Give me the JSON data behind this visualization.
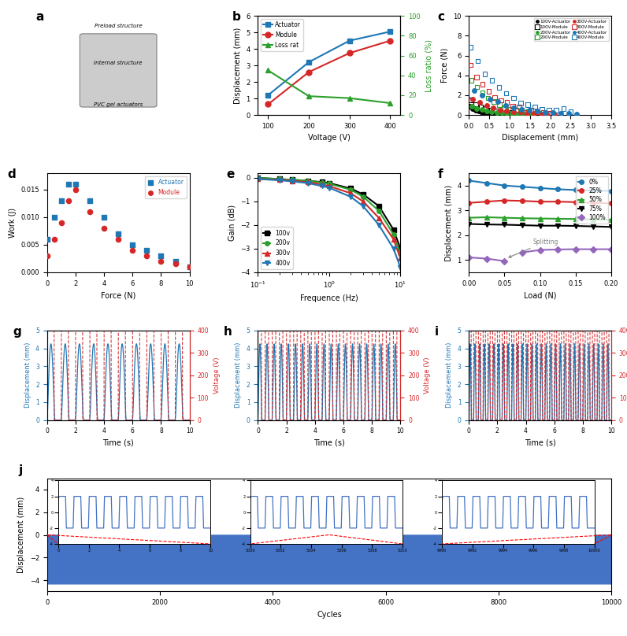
{
  "panel_b": {
    "voltage": [
      100,
      200,
      300,
      400
    ],
    "actuator_disp": [
      1.2,
      3.2,
      4.5,
      5.05
    ],
    "module_disp": [
      0.65,
      2.6,
      3.75,
      4.5
    ],
    "loss_ratio": [
      45,
      19,
      17,
      12
    ],
    "actuator_color": "#1f77b4",
    "module_color": "#d62728",
    "loss_color": "#2ca02c",
    "xlabel": "Voltage (V)",
    "ylabel_left": "Displacement (mm)",
    "ylabel_right": "Loss ratio (%)",
    "ylim_left": [
      0,
      6
    ],
    "ylim_right": [
      0,
      100
    ]
  },
  "panel_c": {
    "colors_100": "#000000",
    "colors_200": "#2ca02c",
    "colors_300": "#d62728",
    "colors_400": "#1f77b4",
    "xlabel": "Displacement (mm)",
    "ylabel": "Force (N)",
    "xlim": [
      0,
      3.5
    ],
    "ylim": [
      0,
      10
    ]
  },
  "panel_d": {
    "actuator_force": [
      0.0,
      0.5,
      1.0,
      1.5,
      2.0,
      3.0,
      4.0,
      5.0,
      6.0,
      7.0,
      8.0,
      9.0,
      10.0
    ],
    "actuator_work": [
      0.006,
      0.01,
      0.013,
      0.016,
      0.016,
      0.013,
      0.01,
      0.007,
      0.005,
      0.004,
      0.003,
      0.002,
      0.001
    ],
    "module_force": [
      0.0,
      0.5,
      1.0,
      1.5,
      2.0,
      3.0,
      4.0,
      5.0,
      6.0,
      7.0,
      8.0,
      9.0,
      10.0
    ],
    "module_work": [
      0.003,
      0.006,
      0.009,
      0.013,
      0.015,
      0.011,
      0.008,
      0.006,
      0.004,
      0.003,
      0.002,
      0.0015,
      0.001
    ],
    "actuator_color": "#1f77b4",
    "module_color": "#d62728",
    "xlabel": "Force (N)",
    "ylabel": "Work (J)",
    "ylim": [
      0,
      0.018
    ],
    "xlim": [
      0,
      10
    ]
  },
  "panel_e": {
    "freq": [
      0.1,
      0.2,
      0.3,
      0.5,
      0.8,
      1.0,
      2.0,
      3.0,
      5.0,
      8.0,
      10.0
    ],
    "gain_100v": [
      0.0,
      -0.05,
      -0.08,
      -0.12,
      -0.18,
      -0.22,
      -0.45,
      -0.7,
      -1.2,
      -2.2,
      -3.0
    ],
    "gain_200v": [
      0.0,
      -0.05,
      -0.08,
      -0.12,
      -0.2,
      -0.25,
      -0.5,
      -0.8,
      -1.4,
      -2.4,
      -3.2
    ],
    "gain_300v": [
      -0.05,
      -0.08,
      -0.12,
      -0.18,
      -0.28,
      -0.35,
      -0.65,
      -1.0,
      -1.7,
      -2.6,
      -3.4
    ],
    "gain_400v": [
      -0.05,
      -0.1,
      -0.15,
      -0.22,
      -0.35,
      -0.42,
      -0.8,
      -1.2,
      -2.0,
      -3.0,
      -3.8
    ],
    "xlabel": "Frequence (Hz)",
    "ylabel": "Gain (dB)",
    "xlim": [
      0.1,
      10
    ],
    "ylim": [
      -4,
      0.2
    ]
  },
  "panel_f": {
    "load": [
      0.0,
      0.025,
      0.05,
      0.075,
      0.1,
      0.125,
      0.15,
      0.175,
      0.2
    ],
    "disp_0": [
      4.2,
      4.1,
      4.0,
      3.95,
      3.9,
      3.85,
      3.82,
      3.8,
      3.78
    ],
    "disp_25": [
      3.3,
      3.35,
      3.4,
      3.38,
      3.35,
      3.35,
      3.33,
      3.3,
      3.28
    ],
    "disp_50": [
      2.7,
      2.72,
      2.7,
      2.68,
      2.67,
      2.66,
      2.65,
      2.63,
      2.62
    ],
    "disp_75": [
      2.45,
      2.43,
      2.42,
      2.4,
      2.38,
      2.38,
      2.37,
      2.35,
      2.33
    ],
    "disp_100_before": [
      1.1,
      1.05,
      0.95
    ],
    "disp_100_after": [
      1.3,
      1.4,
      1.42,
      1.43,
      1.43,
      1.43
    ],
    "load_100_before": [
      0.0,
      0.025,
      0.05
    ],
    "load_100_after": [
      0.075,
      0.1,
      0.125,
      0.15,
      0.175,
      0.2
    ],
    "xlabel": "Load (N)",
    "ylabel": "Displacement (mm)",
    "xlim": [
      0,
      0.2
    ],
    "ylim": [
      0.5,
      4.5
    ],
    "colors": [
      "#1f77b4",
      "#d62728",
      "#2ca02c",
      "#000000",
      "#9467bd"
    ],
    "labels": [
      "0%",
      "25%",
      "50%",
      "75%",
      "100%"
    ]
  },
  "disp_color": "#1f77b4",
  "volt_color": "#d62728",
  "figure_bg": "#ffffff"
}
